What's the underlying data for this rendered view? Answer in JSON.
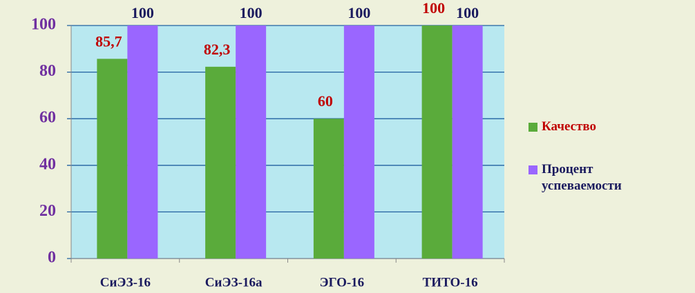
{
  "chart_data": {
    "type": "bar",
    "categories": [
      "СиЭЗ-16",
      "СиЭЗ-16а",
      "ЭГО-16",
      "ТИТО-16"
    ],
    "series": [
      {
        "name": "Качество",
        "color": "#5aab3b",
        "values": [
          85.7,
          82.3,
          60,
          100
        ],
        "value_labels": [
          "85,7",
          "82,3",
          "60",
          "100"
        ]
      },
      {
        "name": "Процент успеваемости",
        "color": "#9a66ff",
        "values": [
          100,
          100,
          100,
          100
        ]
      }
    ],
    "ylim": [
      0,
      100
    ],
    "yticks": [
      0,
      20,
      40,
      60,
      80,
      100
    ],
    "grid": true
  }
}
